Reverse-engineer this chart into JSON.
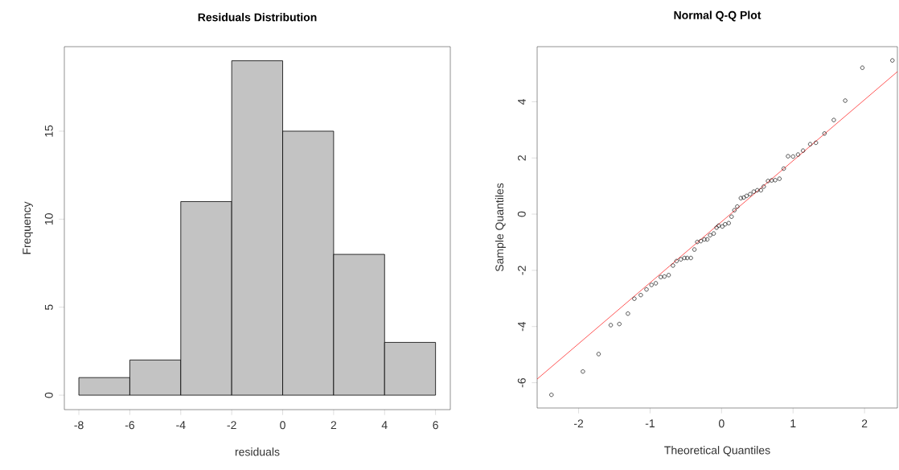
{
  "chart_data": [
    {
      "type": "histogram",
      "title": "Residuals Distribution",
      "xlabel": "residuals",
      "ylabel": "Frequency",
      "bins": [
        -8,
        -6,
        -4,
        -2,
        0,
        2,
        4,
        6
      ],
      "values": [
        1,
        2,
        11,
        19,
        15,
        8,
        3
      ],
      "color": "#c3c3c3",
      "xlim": [
        -8.57,
        6.58
      ],
      "ylim": [
        -0.82,
        19.8
      ],
      "xticks": [
        -8,
        -6,
        -4,
        -2,
        0,
        2,
        4,
        6
      ],
      "yticks": [
        0,
        5,
        10,
        15
      ],
      "grid": false
    },
    {
      "type": "scatter",
      "title": "Normal Q-Q Plot",
      "xlabel": "Theoretical Quantiles",
      "ylabel": "Sample Quantiles",
      "xlim": [
        -2.58,
        2.46
      ],
      "ylim": [
        -6.9,
        5.96
      ],
      "xticks": [
        -2,
        -1,
        0,
        1,
        2
      ],
      "yticks": [
        -6,
        -4,
        -2,
        0,
        2,
        4
      ],
      "grid": false,
      "series": [
        {
          "type": "scatter",
          "color": "#000000",
          "marker": "circle",
          "x": [
            -2.38,
            -1.94,
            -1.72,
            -1.55,
            -1.43,
            -1.31,
            -1.22,
            -1.13,
            -1.05,
            -0.98,
            -0.92,
            -0.85,
            -0.8,
            -0.74,
            -0.68,
            -0.63,
            -0.57,
            -0.52,
            -0.48,
            -0.43,
            -0.38,
            -0.34,
            -0.29,
            -0.24,
            -0.2,
            -0.16,
            -0.11,
            -0.07,
            -0.04,
            0.01,
            0.05,
            0.1,
            0.14,
            0.18,
            0.22,
            0.27,
            0.31,
            0.35,
            0.4,
            0.45,
            0.5,
            0.55,
            0.59,
            0.65,
            0.7,
            0.75,
            0.81,
            0.87,
            0.93,
            1.0,
            1.07,
            1.14,
            1.24,
            1.32,
            1.44,
            1.57,
            1.73,
            1.97,
            2.39
          ],
          "values": [
            -6.43,
            -5.6,
            -4.98,
            -3.95,
            -3.91,
            -3.54,
            -3.01,
            -2.88,
            -2.68,
            -2.52,
            -2.46,
            -2.24,
            -2.22,
            -2.17,
            -1.83,
            -1.67,
            -1.61,
            -1.56,
            -1.56,
            -1.56,
            -1.26,
            -0.99,
            -0.96,
            -0.9,
            -0.9,
            -0.75,
            -0.69,
            -0.48,
            -0.41,
            -0.44,
            -0.36,
            -0.32,
            -0.09,
            0.14,
            0.27,
            0.57,
            0.59,
            0.65,
            0.71,
            0.8,
            0.85,
            0.85,
            0.98,
            1.18,
            1.2,
            1.21,
            1.26,
            1.62,
            2.06,
            2.05,
            2.12,
            2.26,
            2.49,
            2.54,
            2.87,
            3.35,
            4.04,
            5.21,
            5.47
          ]
        },
        {
          "type": "line",
          "color": "#ff0000",
          "x": [
            -2.58,
            2.46
          ],
          "values": [
            -5.87,
            5.07
          ]
        }
      ]
    }
  ]
}
